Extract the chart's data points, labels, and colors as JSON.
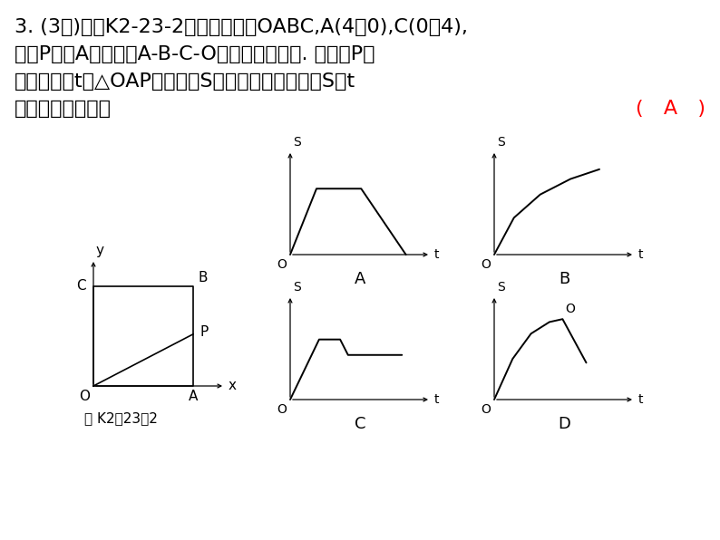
{
  "bg_color": "#ffffff",
  "text_color": "#000000",
  "title_line1": "3. (3分)如图K2-23-2，已知正方形OABC,A(4，0),C(0，4),",
  "title_line2": "动点P从点A出发，沿A-B-C-O的路线匀速运动. 设动点P的",
  "title_line3": "运动路程为t，△OAP的面积为S，则下列能大致反映S与t",
  "title_line4": "之间关系的图象是",
  "answer": "( A )",
  "answer_color": "#ff0000",
  "fig_caption": "图 K2－23－2",
  "font_size_main": 16,
  "font_size_graph": 11,
  "font_size_label": 13
}
